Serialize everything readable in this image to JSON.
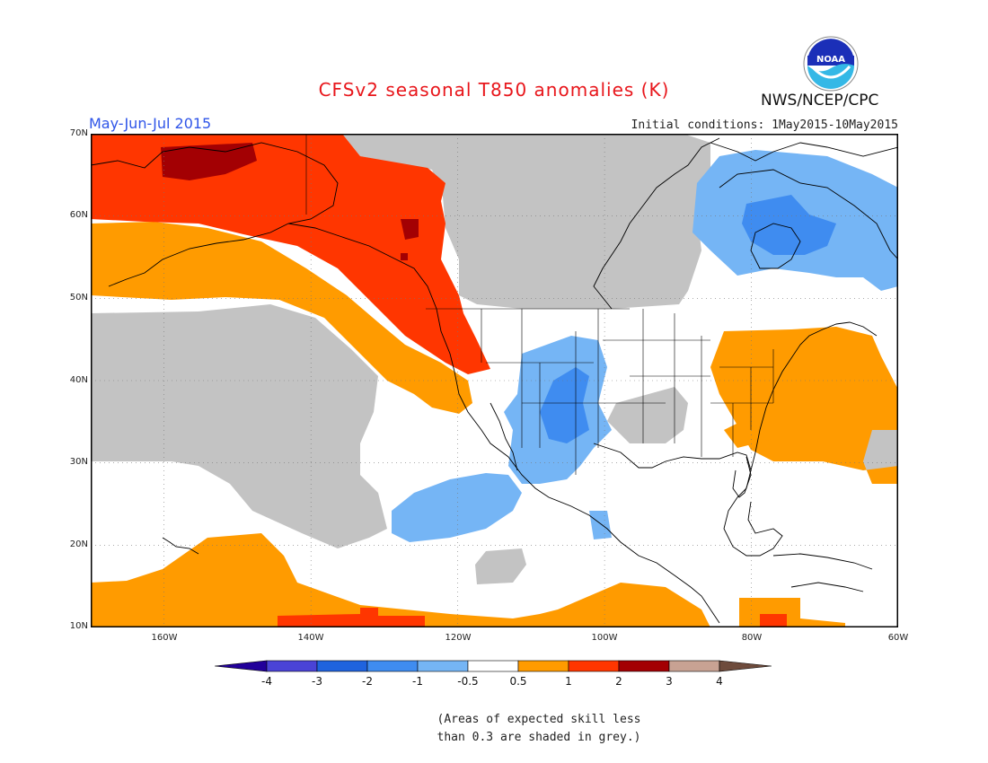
{
  "header": {
    "title": "CFSv2 seasonal T850 anomalies (K)",
    "season": "May-Jun-Jul 2015",
    "initial_conditions": "Initial conditions: 1May2015-10May2015",
    "agency": "NWS/NCEP/CPC",
    "logo_text": "NOAA"
  },
  "map": {
    "projection": "lat-lon",
    "lon_range": [
      -170,
      -60
    ],
    "lat_range": [
      10,
      70
    ],
    "lat_labels": [
      "70N",
      "60N",
      "50N",
      "40N",
      "30N",
      "20N",
      "10N"
    ],
    "lon_labels": [
      "160W",
      "140W",
      "120W",
      "100W",
      "80W",
      "60W"
    ],
    "skill_mask_color": "#c3c3c3",
    "regions": [
      {
        "category": "grey",
        "label": "low skill - eastern Pacific"
      },
      {
        "category": "grey",
        "label": "low skill - Canada"
      },
      {
        "category": "1 to 2",
        "label": "Alaska / Pacific Northwest warm"
      },
      {
        "category": "2 to 3",
        "label": "northwest Canada maximum"
      },
      {
        "category": "0.5 to 1",
        "label": "Gulf of Alaska"
      },
      {
        "category": "0.5 to 1",
        "label": "eastern US and western Atlantic"
      },
      {
        "category": "0.5 to 1",
        "label": "tropical Pacific"
      },
      {
        "category": "-1 to -0.5",
        "label": "US Southwest / Mexico cool"
      },
      {
        "category": "-2 to -1",
        "label": "Four Corners"
      },
      {
        "category": "-1 to -0.5",
        "label": "Labrador / Greenland cool"
      },
      {
        "category": "-2 to -1",
        "label": "Hudson Bay / Quebec"
      }
    ]
  },
  "colorbar": {
    "labels": [
      "-4",
      "-3",
      "-2",
      "-1",
      "-0.5",
      "0.5",
      "1",
      "2",
      "3",
      "4"
    ],
    "colors": [
      "#22009a",
      "#4a43d6",
      "#1f63de",
      "#3f8cf0",
      "#75b5f5",
      "#ffffff",
      "#ff9b00",
      "#ff3600",
      "#a30003",
      "#c8a293",
      "#6e4b3c"
    ]
  },
  "note": {
    "line1": "(Areas of expected skill less",
    "line2": "than 0.3 are shaded in grey.)"
  }
}
